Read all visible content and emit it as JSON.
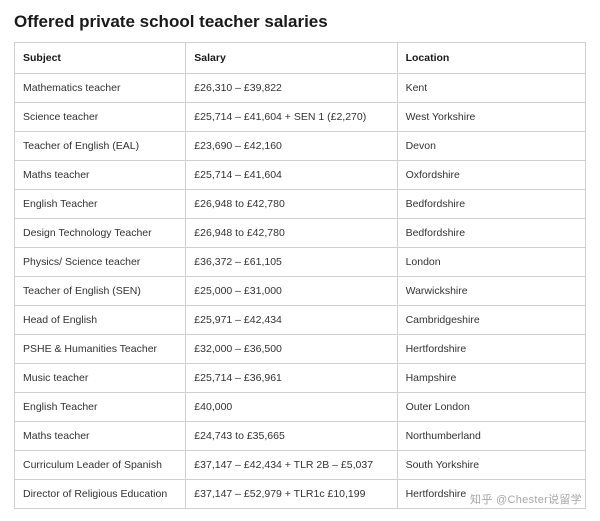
{
  "title": "Offered private school teacher salaries",
  "table": {
    "columns": [
      "Subject",
      "Salary",
      "Location"
    ],
    "rows": [
      {
        "subject": "Mathematics teacher",
        "salary": "£26,310 – £39,822",
        "location": "Kent"
      },
      {
        "subject": "Science teacher",
        "salary": "£25,714 – £41,604 + SEN 1 (£2,270)",
        "location": "West Yorkshire"
      },
      {
        "subject": "Teacher of English (EAL)",
        "salary": "£23,690 – £42,160",
        "location": "Devon"
      },
      {
        "subject": "Maths teacher",
        "salary": "£25,714 – £41,604",
        "location": "Oxfordshire"
      },
      {
        "subject": "English Teacher",
        "salary": "£26,948 to £42,780",
        "location": "Bedfordshire"
      },
      {
        "subject": "Design Technology Teacher",
        "salary": "£26,948 to £42,780",
        "location": "Bedfordshire"
      },
      {
        "subject": "Physics/ Science teacher",
        "salary": "£36,372 – £61,105",
        "location": "London"
      },
      {
        "subject": "Teacher of English (SEN)",
        "salary": "£25,000 – £31,000",
        "location": "Warwickshire"
      },
      {
        "subject": "Head of English",
        "salary": "£25,971 – £42,434",
        "location": "Cambridgeshire"
      },
      {
        "subject": "PSHE & Humanities Teacher",
        "salary": "£32,000 – £36,500",
        "location": "Hertfordshire"
      },
      {
        "subject": "Music teacher",
        "salary": "£25,714 – £36,961",
        "location": "Hampshire"
      },
      {
        "subject": "English Teacher",
        "salary": "£40,000",
        "location": "Outer London"
      },
      {
        "subject": "Maths teacher",
        "salary": "£24,743 to £35,665",
        "location": "Northumberland"
      },
      {
        "subject": "Curriculum Leader of Spanish",
        "salary": "£37,147 – £42,434 + TLR 2B – £5,037",
        "location": "South Yorkshire"
      },
      {
        "subject": "Director of Religious Education",
        "salary": "£37,147 – £52,979 + TLR1c £10,199",
        "location": "Hertfordshire"
      }
    ]
  },
  "watermark": "知乎 @Chester说留学",
  "styling": {
    "body_bg": "#ffffff",
    "text_color": "#333333",
    "title_color": "#1a1a1a",
    "border_color": "#d0d0d0",
    "title_fontsize": 17,
    "cell_fontsize": 10.5,
    "col_widths_pct": [
      30,
      37,
      33
    ],
    "watermark_color": "rgba(120,120,120,0.65)"
  }
}
